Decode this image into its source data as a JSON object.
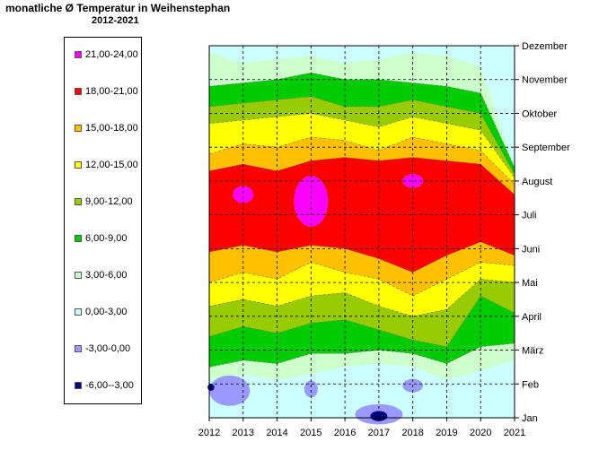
{
  "chart_data": {
    "type": "heatmap",
    "title": "monatliche Ø Temperatur in Weihenstephan",
    "subtitle": "2012-2021",
    "x_ticks": [
      "2012",
      "2013",
      "2014",
      "2015",
      "2016",
      "2017",
      "2018",
      "2019",
      "2020",
      "2021"
    ],
    "xlim": [
      2012,
      2021
    ],
    "y_ticks": [
      "Jan",
      "Feb",
      "März",
      "April",
      "Mai",
      "Juni",
      "Juli",
      "August",
      "September",
      "Oktober",
      "November",
      "Dezember"
    ],
    "legend_placement": "left",
    "grid": true,
    "legend": [
      {
        "label": "21,00-24,00",
        "color": "#ff00ff"
      },
      {
        "label": "18,00-21,00",
        "color": "#ff0000"
      },
      {
        "label": "15,00-18,00",
        "color": "#ffc000"
      },
      {
        "label": "12,00-15,00",
        "color": "#ffff00"
      },
      {
        "label": "9,00-12,00",
        "color": "#99cc00"
      },
      {
        "label": "6,00-9,00",
        "color": "#00cc00"
      },
      {
        "label": "3,00-6,00",
        "color": "#ccffcc"
      },
      {
        "label": "0,00-3,00",
        "color": "#ccffff"
      },
      {
        "label": "-3,00-0,00",
        "color": "#9999ff"
      },
      {
        "label": "-6,00--3,00",
        "color": "#000080"
      }
    ],
    "bands": [
      {
        "range": "6,00-9,00",
        "color": "#00cc00",
        "lower": [
          [
            2012,
            1.5
          ],
          [
            2013,
            1.7
          ],
          [
            2014,
            1.6
          ],
          [
            2015,
            1.9
          ],
          [
            2016,
            1.9
          ],
          [
            2017,
            2.0
          ],
          [
            2018,
            1.9
          ],
          [
            2019,
            1.6
          ],
          [
            2020,
            2.1
          ],
          [
            2021,
            2.2
          ]
        ],
        "upper": [
          [
            2012,
            9.8
          ],
          [
            2013,
            9.9
          ],
          [
            2014,
            10.0
          ],
          [
            2015,
            10.2
          ],
          [
            2016,
            10.0
          ],
          [
            2017,
            10.0
          ],
          [
            2018,
            9.9
          ],
          [
            2019,
            9.8
          ],
          [
            2020,
            9.6
          ],
          [
            2021,
            7.4
          ]
        ]
      },
      {
        "range": "9,00-12,00",
        "color": "#99cc00",
        "lower": [
          [
            2012,
            2.4
          ],
          [
            2013,
            2.7
          ],
          [
            2014,
            2.5
          ],
          [
            2015,
            2.8
          ],
          [
            2016,
            2.9
          ],
          [
            2017,
            2.6
          ],
          [
            2018,
            2.3
          ],
          [
            2019,
            2.1
          ],
          [
            2020,
            3.6
          ],
          [
            2021,
            3.1
          ]
        ],
        "upper": [
          [
            2012,
            9.2
          ],
          [
            2013,
            9.3
          ],
          [
            2014,
            9.4
          ],
          [
            2015,
            9.5
          ],
          [
            2016,
            9.2
          ],
          [
            2017,
            9.2
          ],
          [
            2018,
            9.4
          ],
          [
            2019,
            9.2
          ],
          [
            2020,
            9.0
          ],
          [
            2021,
            7.2
          ]
        ]
      },
      {
        "range": "12,00-15,00",
        "color": "#ffff00",
        "lower": [
          [
            2012,
            3.3
          ],
          [
            2013,
            3.5
          ],
          [
            2014,
            3.3
          ],
          [
            2015,
            3.6
          ],
          [
            2016,
            3.7
          ],
          [
            2017,
            3.3
          ],
          [
            2018,
            3.0
          ],
          [
            2019,
            3.2
          ],
          [
            2020,
            4.1
          ],
          [
            2021,
            4.0
          ]
        ],
        "upper": [
          [
            2012,
            8.7
          ],
          [
            2013,
            8.8
          ],
          [
            2014,
            8.9
          ],
          [
            2015,
            9.0
          ],
          [
            2016,
            8.8
          ],
          [
            2017,
            8.6
          ],
          [
            2018,
            8.9
          ],
          [
            2019,
            8.7
          ],
          [
            2020,
            8.5
          ],
          [
            2021,
            7.1
          ]
        ]
      },
      {
        "range": "15,00-18,00",
        "color": "#ffc000",
        "lower": [
          [
            2012,
            4.0
          ],
          [
            2013,
            4.3
          ],
          [
            2014,
            4.1
          ],
          [
            2015,
            4.6
          ],
          [
            2016,
            4.3
          ],
          [
            2017,
            4.1
          ],
          [
            2018,
            3.6
          ],
          [
            2019,
            4.1
          ],
          [
            2020,
            4.6
          ],
          [
            2021,
            4.5
          ]
        ],
        "upper": [
          [
            2012,
            7.8
          ],
          [
            2013,
            8.1
          ],
          [
            2014,
            8.0
          ],
          [
            2015,
            8.3
          ],
          [
            2016,
            8.2
          ],
          [
            2017,
            7.9
          ],
          [
            2018,
            8.3
          ],
          [
            2019,
            8.1
          ],
          [
            2020,
            7.9
          ],
          [
            2021,
            6.9
          ]
        ]
      },
      {
        "range": "18,00-21,00",
        "color": "#ff0000",
        "lower": [
          [
            2012,
            4.9
          ],
          [
            2013,
            5.1
          ],
          [
            2014,
            4.9
          ],
          [
            2015,
            5.1
          ],
          [
            2016,
            5.0
          ],
          [
            2017,
            4.7
          ],
          [
            2018,
            4.3
          ],
          [
            2019,
            4.8
          ],
          [
            2020,
            5.2
          ],
          [
            2021,
            4.8
          ]
        ],
        "upper": [
          [
            2012,
            7.3
          ],
          [
            2013,
            7.5
          ],
          [
            2014,
            7.3
          ],
          [
            2015,
            7.6
          ],
          [
            2016,
            7.7
          ],
          [
            2017,
            7.6
          ],
          [
            2018,
            7.7
          ],
          [
            2019,
            7.6
          ],
          [
            2020,
            7.5
          ],
          [
            2021,
            6.6
          ]
        ]
      }
    ],
    "light_areas": [
      {
        "range": "3,00-6,00",
        "color": "#ccffcc",
        "lower": [
          [
            2012,
            1.1
          ],
          [
            2013,
            1.3
          ],
          [
            2014,
            1.1
          ],
          [
            2015,
            1.3
          ],
          [
            2016,
            1.5
          ],
          [
            2017,
            1.6
          ],
          [
            2018,
            1.5
          ],
          [
            2019,
            1.1
          ],
          [
            2020,
            1.4
          ],
          [
            2021,
            1.7
          ]
        ],
        "upper": [
          [
            2012,
            10.8
          ],
          [
            2013,
            10.5
          ],
          [
            2014,
            10.6
          ],
          [
            2015,
            10.7
          ],
          [
            2016,
            10.5
          ],
          [
            2017,
            10.6
          ],
          [
            2018,
            10.8
          ],
          [
            2019,
            10.7
          ],
          [
            2020,
            10.4
          ],
          [
            2021,
            7.4
          ]
        ]
      }
    ],
    "blobs": [
      {
        "range": "21,00-24,00",
        "color": "#ff00ff",
        "cx": 2015.0,
        "cy": 6.4,
        "rx": 0.5,
        "ry": 0.75
      },
      {
        "range": "21,00-24,00",
        "color": "#ff00ff",
        "cx": 2013.0,
        "cy": 6.6,
        "rx": 0.3,
        "ry": 0.25
      },
      {
        "range": "21,00-24,00",
        "color": "#ff00ff",
        "cx": 2018.0,
        "cy": 7.0,
        "rx": 0.3,
        "ry": 0.2
      },
      {
        "range": "-3,00-0,00",
        "color": "#9999ff",
        "cx": 2012.6,
        "cy": 0.8,
        "rx": 0.6,
        "ry": 0.45
      },
      {
        "range": "-3,00-0,00",
        "color": "#9999ff",
        "cx": 2015.0,
        "cy": 0.85,
        "rx": 0.2,
        "ry": 0.25
      },
      {
        "range": "-3,00-0,00",
        "color": "#9999ff",
        "cx": 2018.0,
        "cy": 0.95,
        "rx": 0.3,
        "ry": 0.2
      },
      {
        "range": "-3,00-0,00",
        "color": "#9999ff",
        "cx": 2017.0,
        "cy": 0.1,
        "rx": 0.7,
        "ry": 0.3
      },
      {
        "range": "-6,00--3,00",
        "color": "#000080",
        "cx": 2017.0,
        "cy": 0.05,
        "rx": 0.25,
        "ry": 0.15
      },
      {
        "range": "-6,00--3,00",
        "color": "#000080",
        "cx": 2012.05,
        "cy": 0.9,
        "rx": 0.1,
        "ry": 0.1
      }
    ]
  }
}
